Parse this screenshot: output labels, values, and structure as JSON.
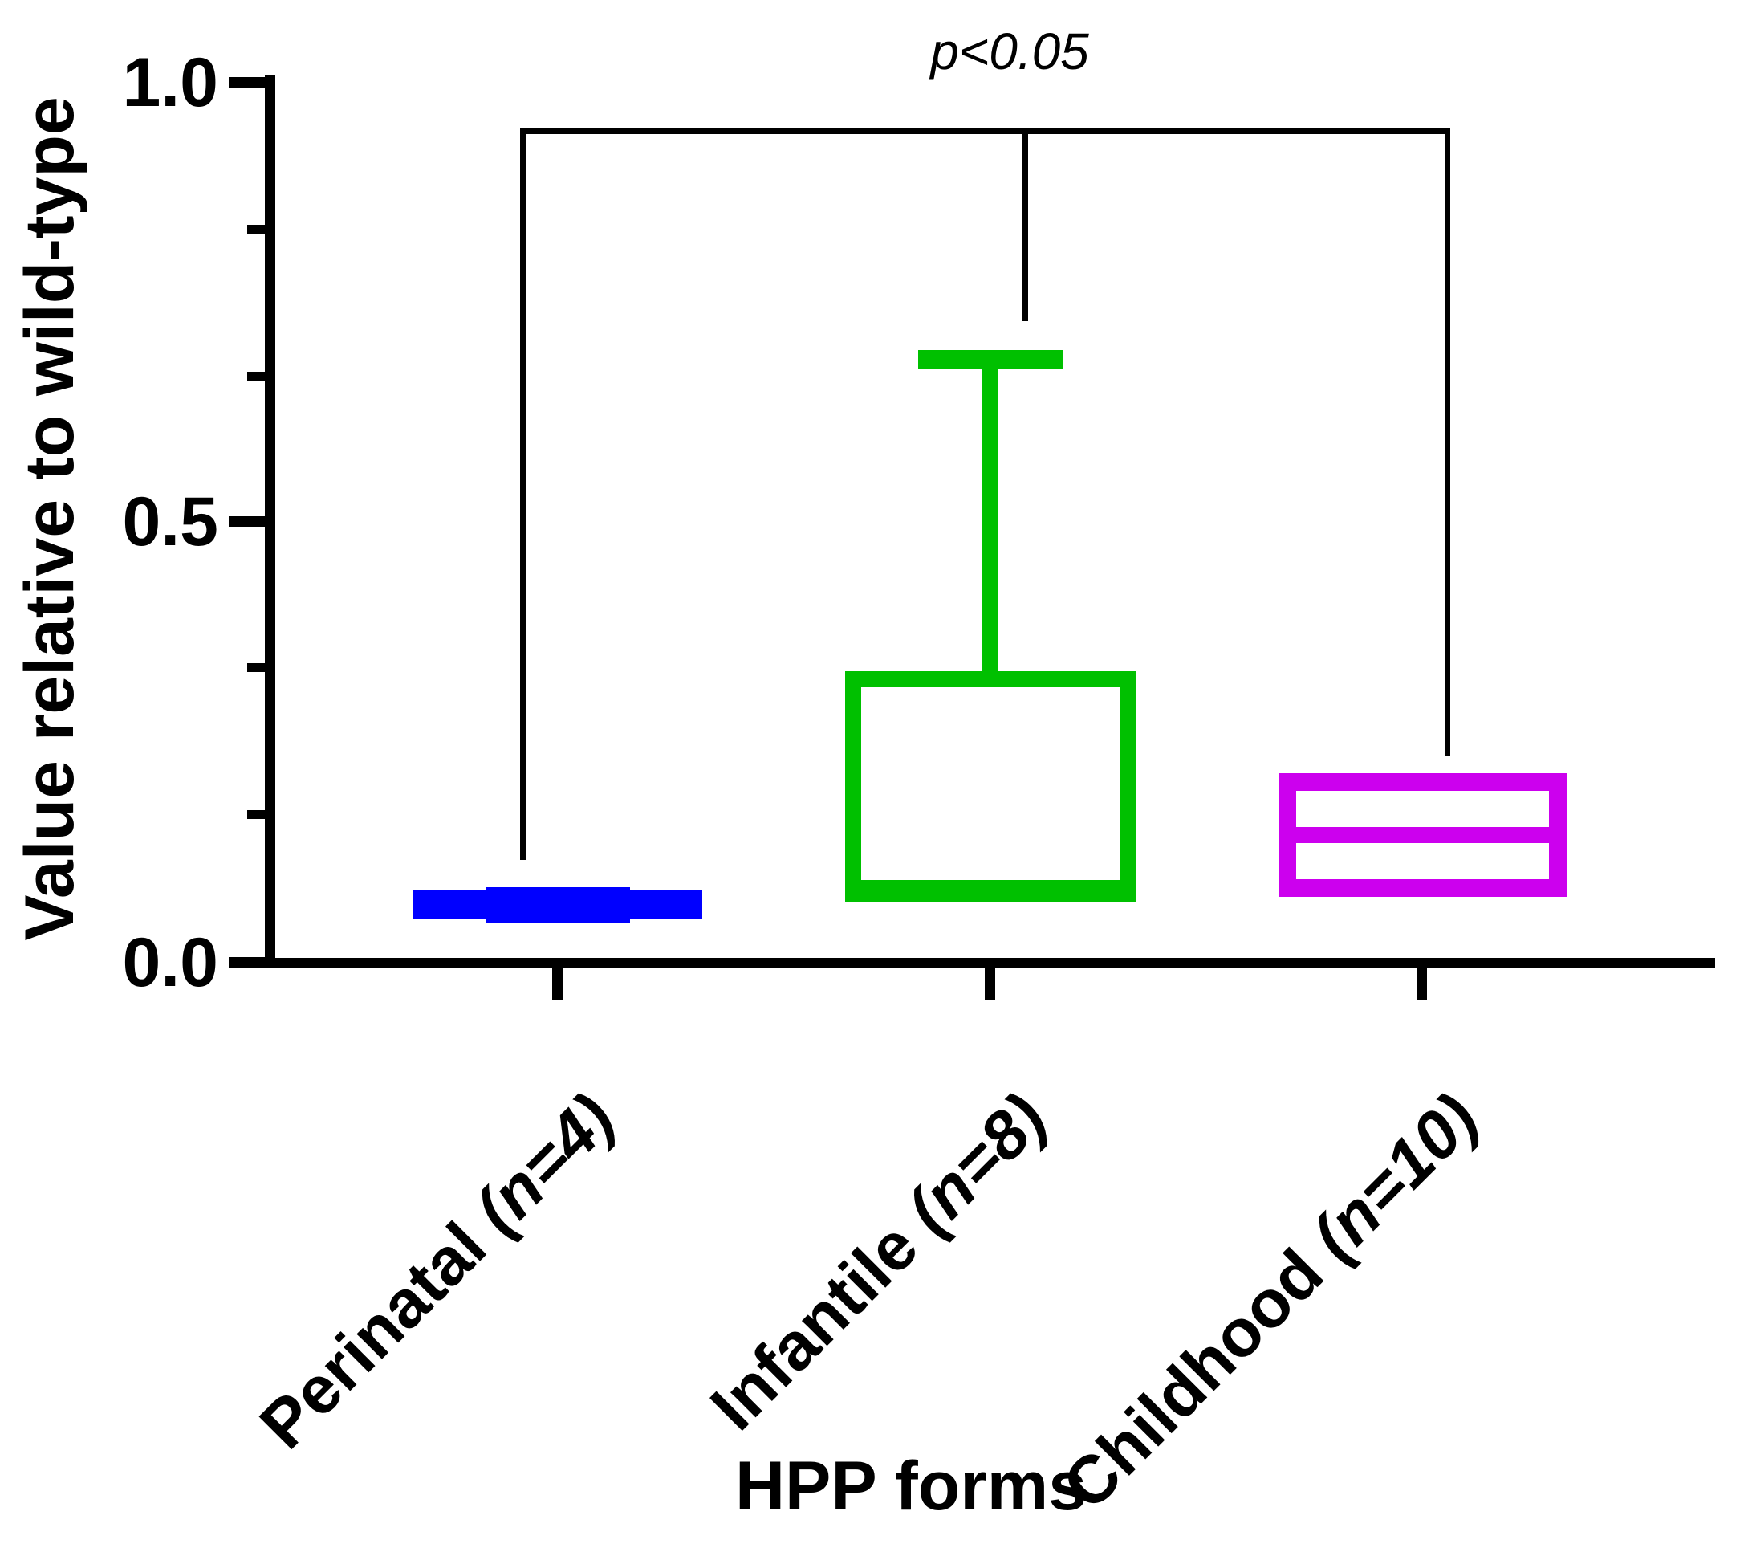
{
  "chart_data": {
    "type": "box",
    "title": "",
    "xlabel": "HPP forms",
    "ylabel": "Value relative to wild-type",
    "ylim": [
      0.0,
      1.0
    ],
    "ytick_values": [
      1.0,
      0.5,
      0.0
    ],
    "ytick_labels": [
      "1.0",
      "0.5",
      "0.0"
    ],
    "minor_ticks_per_major_interval": 2,
    "grid": false,
    "legend": false,
    "annotation": {
      "text": "p<0.05",
      "bracket_top_value": 0.95,
      "connects_categories": [
        "Perinatal (n=4)",
        "Infantile (n=8)",
        "Childhood (n=10)"
      ]
    },
    "categories": [
      "Perinatal (n=4)",
      "Infantile (n=8)",
      "Childhood (n=10)"
    ],
    "series": [
      {
        "name": "Perinatal (n=4)",
        "n": 4,
        "color": "#0000FF",
        "whisker_min": 0.045,
        "q1": 0.05,
        "median": 0.066,
        "q3": 0.083,
        "whisker_max": 0.086
      },
      {
        "name": "Infantile (n=8)",
        "n": 8,
        "color": "#00C000",
        "whisker_min": 0.085,
        "q1": 0.085,
        "median": 0.09,
        "q3": 0.32,
        "whisker_max": 0.69
      },
      {
        "name": "Childhood (n=10)",
        "n": 10,
        "color": "#CC00EE",
        "whisker_min": 0.084,
        "q1": 0.084,
        "median": 0.145,
        "q3": 0.21,
        "whisker_max": 0.21
      }
    ]
  },
  "labels": {
    "p_annotation": "p<0.05",
    "y_title": "Value relative to wild-type",
    "x_title": "HPP forms",
    "ytick_top": "1.0",
    "ytick_mid": "0.5",
    "ytick_bottom": "0.0",
    "cat1_main": "Perinatal ",
    "cat1_n": "(n=4)",
    "cat2_main": "Infantile ",
    "cat2_n": "(n=8)",
    "cat3_main": "Childhood ",
    "cat3_n": "(n=10)"
  },
  "colors": {
    "perinatal_box": "#0000FF",
    "infantile_box": "#00C000",
    "childhood_box": "#CC00EE",
    "axis_and_text": "#000000",
    "background": "#FFFFFF"
  }
}
